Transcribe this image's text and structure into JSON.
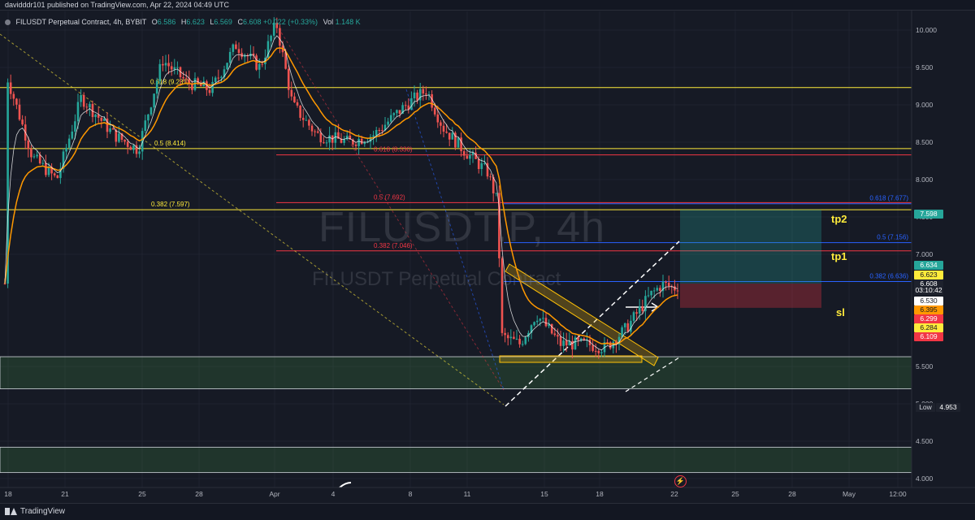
{
  "header": {
    "publisher_text": "davidddr101 published on TradingView.com, Apr 22, 2024 04:49 UTC"
  },
  "legend": {
    "symbol": "FILUSDT Perpetual Contract, 4h, BYBIT",
    "open_label": "O",
    "open": "6.586",
    "high_label": "H",
    "high": "6.623",
    "low_label": "L",
    "low": "6.569",
    "close_label": "C",
    "close": "6.608",
    "change": "+0.022 (+0.33%)",
    "volume_label": "Vol",
    "volume": "1.148 K",
    "color_up": "#26a69a"
  },
  "watermark": {
    "line1": "FILUSDT.P, 4h",
    "line2": "FILUSDT Perpetual Contract"
  },
  "chart_data": {
    "type": "candlestick",
    "price_axis_ticks": [
      "10.000",
      "9.500",
      "9.000",
      "8.500",
      "8.000",
      "7.500",
      "7.000",
      "5.500",
      "5.000",
      "4.500",
      "4.000"
    ],
    "time_axis_ticks": [
      "18",
      "21",
      "25",
      "28",
      "Apr",
      "4",
      "8",
      "11",
      "15",
      "18",
      "22",
      "25",
      "28",
      "May",
      "12:00"
    ],
    "price_levels": [
      {
        "label": "0.618 (9.231)",
        "price": 9.231,
        "color": "#ffeb3b"
      },
      {
        "label": "0.5 (8.414)",
        "price": 8.414,
        "color": "#ffeb3b"
      },
      {
        "label": "0.382 (7.597)",
        "price": 7.597,
        "color": "#ffeb3b"
      },
      {
        "label": "0.618 (8.330)",
        "price": 8.33,
        "color": "#f23645"
      },
      {
        "label": "0.5 (7.692)",
        "price": 7.692,
        "color": "#f23645"
      },
      {
        "label": "0.382 (7.046)",
        "price": 7.046,
        "color": "#f23645"
      },
      {
        "label": "0.618 (7.677)",
        "price": 7.677,
        "color": "#2962ff"
      },
      {
        "label": "0.5 (7.156)",
        "price": 7.156,
        "color": "#2962ff"
      },
      {
        "label": "0.382 (6.636)",
        "price": 6.636,
        "color": "#2962ff"
      }
    ],
    "zones": [
      {
        "name": "demand-zone-upper",
        "from": 5.2,
        "to": 5.63
      },
      {
        "name": "demand-zone-lower",
        "from": 4.08,
        "to": 4.42
      }
    ],
    "position": {
      "entry": 6.608,
      "target": 7.598,
      "stop": 6.284
    },
    "targets": [
      "tp2",
      "tp1",
      "sl"
    ],
    "price_tags": [
      {
        "value": "7.598",
        "bg": "#26a69a",
        "fg": "#ffffff"
      },
      {
        "value": "6.634",
        "bg": "#26a69a",
        "fg": "#ffffff"
      },
      {
        "value": "6.623",
        "bg": "#ffeb3b",
        "fg": "#131722"
      },
      {
        "value": "6.608",
        "bg": "#1e222d",
        "fg": "#ffffff"
      },
      {
        "value": "03:10:42",
        "bg": "#1e222d",
        "fg": "#ffffff"
      },
      {
        "value": "6.530",
        "bg": "#ffffff",
        "fg": "#131722"
      },
      {
        "value": "6.395",
        "bg": "#ff9800",
        "fg": "#131722"
      },
      {
        "value": "6.299",
        "bg": "#f23645",
        "fg": "#ffffff"
      },
      {
        "value": "6.284",
        "bg": "#ffeb3b",
        "fg": "#131722"
      },
      {
        "value": "6.109",
        "bg": "#f23645",
        "fg": "#ffffff"
      }
    ],
    "low_marker": {
      "label": "Low",
      "value": "4.953"
    },
    "colors": {
      "up": "#26a69a",
      "down": "#ef5350",
      "ema_fast": "#ffffff",
      "ema_slow": "#ff9800"
    }
  },
  "footer": {
    "brand": "TradingView"
  }
}
